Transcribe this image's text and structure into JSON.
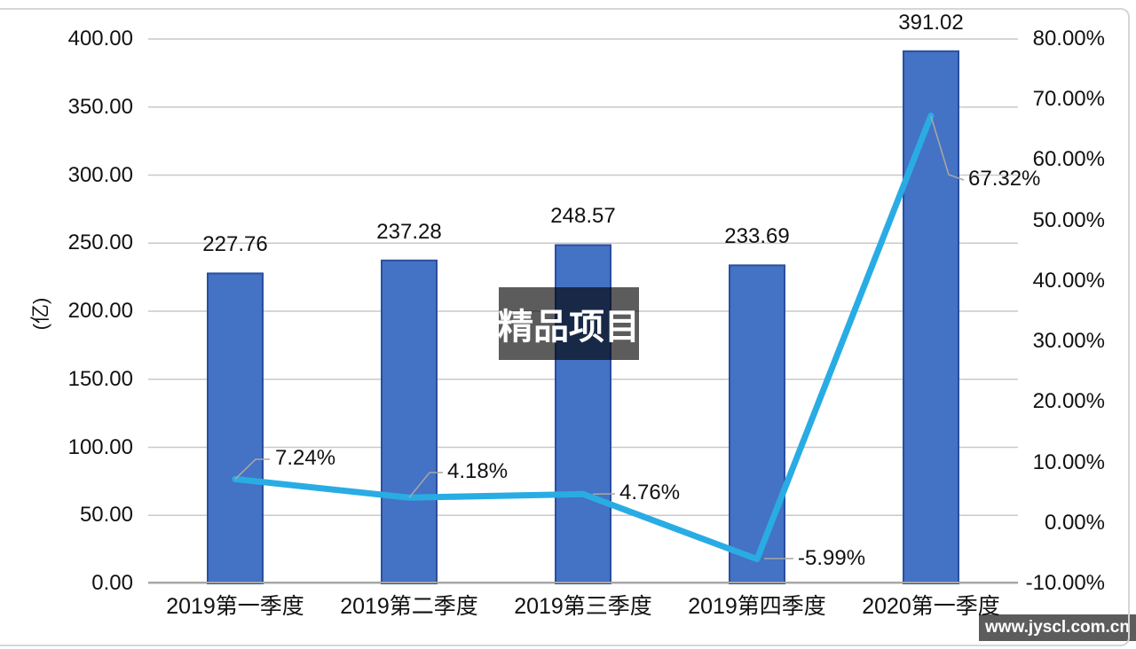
{
  "chart_data": {
    "type": "bar+line combo",
    "categories": [
      "2019第一季度",
      "2019第二季度",
      "2019第三季度",
      "2019第四季度",
      "2020第一季度"
    ],
    "series": [
      {
        "name": "bar-series",
        "type": "bar",
        "axis": "left",
        "values": [
          227.76,
          237.28,
          248.57,
          233.69,
          391.02
        ],
        "labels": [
          "227.76",
          "237.28",
          "248.57",
          "233.69",
          "391.02"
        ],
        "color": "#4472c4",
        "border_color": "#2a4f9e"
      },
      {
        "name": "line-series",
        "type": "line",
        "axis": "right",
        "values": [
          7.24,
          4.18,
          4.76,
          -5.99,
          67.32
        ],
        "labels": [
          "7.24%",
          "4.18%",
          "4.76%",
          "-5.99%",
          "67.32%"
        ],
        "color": "#29ace4"
      }
    ],
    "left_axis": {
      "title": "(亿)",
      "min": 0,
      "max": 400,
      "step": 50,
      "ticks": [
        "400.00",
        "350.00",
        "300.00",
        "250.00",
        "200.00",
        "150.00",
        "100.00",
        "50.00",
        "0.00"
      ]
    },
    "right_axis": {
      "min": -10,
      "max": 80,
      "step": 10,
      "ticks": [
        "80.00%",
        "70.00%",
        "60.00%",
        "50.00%",
        "40.00%",
        "30.00%",
        "20.00%",
        "10.00%",
        "0.00%",
        "-10.00%"
      ]
    },
    "grid": true,
    "legend": "none",
    "gridline_color": "#c9c9c9",
    "axis_line_color": "#a6a6a6",
    "leader_line_color": "#a6a6a6"
  },
  "watermarks": {
    "center": "精品项目",
    "site": "www.jyscl.com.cn"
  }
}
